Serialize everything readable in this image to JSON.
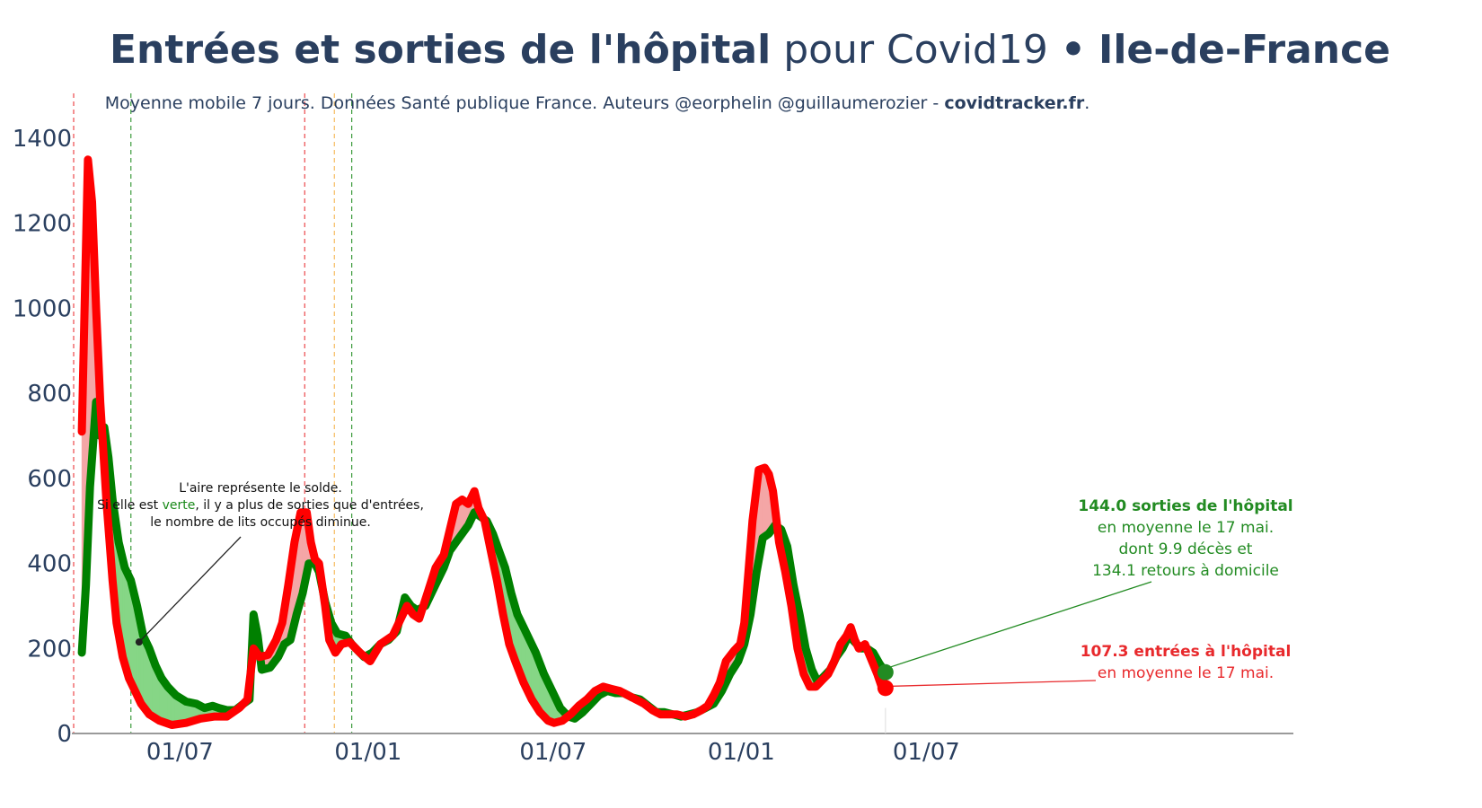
{
  "title": {
    "bold_part": "Entrées et sorties de l'hôpital",
    "regular_part": "pour Covid19",
    "separator": "•",
    "region": "Ile-de-France"
  },
  "subtitle": {
    "text": "Moyenne mobile 7 jours. Données Santé publique France. Auteurs @eorphelin @guillaumerozier - ",
    "site": "covidtracker.fr",
    "end": "."
  },
  "note": {
    "line1": "L'aire représente le solde.",
    "line2_before": "Si elle est ",
    "line2_colored": "verte",
    "line2_after": ", il y a plus de sorties que d'entrées,",
    "line3": "le nombre de lits occupés diminue."
  },
  "annotations": {
    "sorties_title": "144.0 sorties de l'hôpital",
    "sorties_line2": "en moyenne le 17 mai.",
    "sorties_line3": "dont 9.9 décès et",
    "sorties_line4": "134.1 retours à domicile",
    "entrees_title": "107.3 entrées à l'hôpital",
    "entrees_line2": "en moyenne le 17 mai."
  },
  "colors": {
    "entrees": "#ff0000",
    "sorties": "#008000",
    "area_positive": "#f4a6a6",
    "area_negative": "#86d686",
    "text": "#2a3f5f",
    "axis": "#9a9a9a"
  },
  "chart_data": {
    "type": "line",
    "x_unit": "days since 2020-03-19",
    "xlim": [
      0,
      1193
    ],
    "ylim": [
      0,
      1400
    ],
    "y_ticks": [
      0,
      200,
      400,
      600,
      800,
      1000,
      1200,
      1400
    ],
    "y_tick_labels": [
      "0",
      "200",
      "400",
      "600",
      "800",
      "1000",
      "1200",
      "1400"
    ],
    "x_ticks": [
      {
        "x": 104,
        "label": "01/07"
      },
      {
        "x": 288,
        "label": "01/01"
      },
      {
        "x": 469,
        "label": "01/07"
      },
      {
        "x": 653,
        "label": "01/01"
      },
      {
        "x": 834,
        "label": "01/07"
      }
    ],
    "vlines": [
      {
        "x": 0,
        "color": "#e8292c"
      },
      {
        "x": 56,
        "color": "#1a8a1a"
      },
      {
        "x": 226,
        "color": "#e8292c"
      },
      {
        "x": 255,
        "color": "#f5b042"
      },
      {
        "x": 272,
        "color": "#1a8a1a"
      }
    ],
    "series": [
      {
        "name": "entrées à l'hôpital",
        "color": "#ff0000",
        "points": [
          [
            8,
            710
          ],
          [
            14,
            1350
          ],
          [
            18,
            1250
          ],
          [
            22,
            1000
          ],
          [
            26,
            780
          ],
          [
            32,
            550
          ],
          [
            38,
            360
          ],
          [
            42,
            260
          ],
          [
            48,
            180
          ],
          [
            54,
            130
          ],
          [
            60,
            100
          ],
          [
            66,
            70
          ],
          [
            74,
            45
          ],
          [
            84,
            30
          ],
          [
            96,
            20
          ],
          [
            110,
            25
          ],
          [
            124,
            35
          ],
          [
            138,
            40
          ],
          [
            150,
            40
          ],
          [
            162,
            60
          ],
          [
            170,
            80
          ],
          [
            176,
            200
          ],
          [
            182,
            180
          ],
          [
            190,
            185
          ],
          [
            198,
            220
          ],
          [
            204,
            260
          ],
          [
            210,
            350
          ],
          [
            216,
            450
          ],
          [
            222,
            520
          ],
          [
            228,
            520
          ],
          [
            232,
            450
          ],
          [
            236,
            410
          ],
          [
            240,
            400
          ],
          [
            246,
            300
          ],
          [
            250,
            220
          ],
          [
            256,
            190
          ],
          [
            262,
            210
          ],
          [
            270,
            215
          ],
          [
            280,
            190
          ],
          [
            290,
            170
          ],
          [
            300,
            210
          ],
          [
            312,
            230
          ],
          [
            320,
            270
          ],
          [
            326,
            300
          ],
          [
            332,
            280
          ],
          [
            338,
            270
          ],
          [
            346,
            330
          ],
          [
            354,
            390
          ],
          [
            362,
            420
          ],
          [
            368,
            480
          ],
          [
            374,
            540
          ],
          [
            380,
            550
          ],
          [
            386,
            540
          ],
          [
            392,
            570
          ],
          [
            396,
            530
          ],
          [
            402,
            500
          ],
          [
            408,
            430
          ],
          [
            414,
            360
          ],
          [
            420,
            280
          ],
          [
            426,
            210
          ],
          [
            432,
            170
          ],
          [
            440,
            120
          ],
          [
            448,
            80
          ],
          [
            456,
            50
          ],
          [
            464,
            30
          ],
          [
            470,
            25
          ],
          [
            478,
            30
          ],
          [
            486,
            45
          ],
          [
            494,
            65
          ],
          [
            502,
            80
          ],
          [
            510,
            100
          ],
          [
            518,
            110
          ],
          [
            526,
            105
          ],
          [
            534,
            100
          ],
          [
            542,
            90
          ],
          [
            550,
            80
          ],
          [
            558,
            70
          ],
          [
            566,
            55
          ],
          [
            574,
            45
          ],
          [
            582,
            45
          ],
          [
            590,
            45
          ],
          [
            598,
            40
          ],
          [
            606,
            45
          ],
          [
            614,
            55
          ],
          [
            620,
            65
          ],
          [
            626,
            90
          ],
          [
            632,
            120
          ],
          [
            638,
            170
          ],
          [
            646,
            195
          ],
          [
            652,
            210
          ],
          [
            656,
            260
          ],
          [
            660,
            380
          ],
          [
            664,
            500
          ],
          [
            670,
            620
          ],
          [
            676,
            625
          ],
          [
            680,
            610
          ],
          [
            684,
            570
          ],
          [
            690,
            450
          ],
          [
            696,
            380
          ],
          [
            702,
            300
          ],
          [
            708,
            200
          ],
          [
            714,
            140
          ],
          [
            720,
            110
          ],
          [
            726,
            110
          ],
          [
            732,
            125
          ],
          [
            738,
            140
          ],
          [
            744,
            170
          ],
          [
            750,
            210
          ],
          [
            756,
            230
          ],
          [
            760,
            250
          ],
          [
            764,
            220
          ],
          [
            768,
            200
          ],
          [
            774,
            210
          ],
          [
            780,
            175
          ],
          [
            786,
            140
          ],
          [
            790,
            112
          ],
          [
            794,
            107
          ]
        ]
      },
      {
        "name": "sorties de l'hôpital",
        "color": "#008000",
        "points": [
          [
            8,
            190
          ],
          [
            12,
            350
          ],
          [
            16,
            580
          ],
          [
            22,
            780
          ],
          [
            26,
            700
          ],
          [
            30,
            720
          ],
          [
            34,
            650
          ],
          [
            38,
            550
          ],
          [
            44,
            450
          ],
          [
            50,
            390
          ],
          [
            56,
            360
          ],
          [
            62,
            300
          ],
          [
            68,
            230
          ],
          [
            74,
            200
          ],
          [
            80,
            160
          ],
          [
            86,
            130
          ],
          [
            92,
            110
          ],
          [
            100,
            90
          ],
          [
            110,
            75
          ],
          [
            120,
            70
          ],
          [
            128,
            60
          ],
          [
            136,
            65
          ],
          [
            142,
            60
          ],
          [
            150,
            55
          ],
          [
            158,
            55
          ],
          [
            166,
            70
          ],
          [
            172,
            80
          ],
          [
            176,
            280
          ],
          [
            180,
            230
          ],
          [
            184,
            150
          ],
          [
            192,
            155
          ],
          [
            200,
            180
          ],
          [
            206,
            210
          ],
          [
            212,
            220
          ],
          [
            218,
            280
          ],
          [
            224,
            330
          ],
          [
            230,
            400
          ],
          [
            236,
            400
          ],
          [
            240,
            380
          ],
          [
            246,
            310
          ],
          [
            252,
            260
          ],
          [
            258,
            235
          ],
          [
            266,
            230
          ],
          [
            272,
            210
          ],
          [
            278,
            195
          ],
          [
            284,
            180
          ],
          [
            292,
            190
          ],
          [
            300,
            210
          ],
          [
            308,
            220
          ],
          [
            316,
            240
          ],
          [
            324,
            320
          ],
          [
            330,
            300
          ],
          [
            336,
            290
          ],
          [
            344,
            300
          ],
          [
            350,
            330
          ],
          [
            356,
            360
          ],
          [
            362,
            390
          ],
          [
            368,
            430
          ],
          [
            374,
            450
          ],
          [
            380,
            470
          ],
          [
            386,
            490
          ],
          [
            392,
            520
          ],
          [
            398,
            510
          ],
          [
            404,
            500
          ],
          [
            410,
            470
          ],
          [
            416,
            430
          ],
          [
            422,
            390
          ],
          [
            428,
            330
          ],
          [
            434,
            280
          ],
          [
            440,
            250
          ],
          [
            446,
            220
          ],
          [
            452,
            190
          ],
          [
            460,
            140
          ],
          [
            468,
            100
          ],
          [
            476,
            60
          ],
          [
            484,
            40
          ],
          [
            490,
            35
          ],
          [
            498,
            50
          ],
          [
            506,
            70
          ],
          [
            514,
            90
          ],
          [
            522,
            100
          ],
          [
            530,
            95
          ],
          [
            538,
            95
          ],
          [
            546,
            85
          ],
          [
            554,
            80
          ],
          [
            562,
            65
          ],
          [
            570,
            50
          ],
          [
            578,
            50
          ],
          [
            586,
            45
          ],
          [
            594,
            40
          ],
          [
            602,
            45
          ],
          [
            610,
            50
          ],
          [
            618,
            60
          ],
          [
            626,
            70
          ],
          [
            634,
            100
          ],
          [
            642,
            140
          ],
          [
            650,
            170
          ],
          [
            656,
            210
          ],
          [
            662,
            280
          ],
          [
            668,
            380
          ],
          [
            674,
            460
          ],
          [
            680,
            470
          ],
          [
            686,
            490
          ],
          [
            692,
            480
          ],
          [
            698,
            440
          ],
          [
            704,
            350
          ],
          [
            710,
            280
          ],
          [
            716,
            200
          ],
          [
            722,
            150
          ],
          [
            728,
            120
          ],
          [
            734,
            135
          ],
          [
            740,
            150
          ],
          [
            746,
            180
          ],
          [
            752,
            200
          ],
          [
            758,
            230
          ],
          [
            764,
            215
          ],
          [
            770,
            200
          ],
          [
            776,
            200
          ],
          [
            782,
            190
          ],
          [
            788,
            165
          ],
          [
            794,
            144
          ]
        ]
      }
    ],
    "annotation_points": {
      "sorties": {
        "x": 794,
        "y": 144
      },
      "entrees": {
        "x": 794,
        "y": 107
      },
      "note_arrow": {
        "x": 64,
        "y": 215
      }
    }
  }
}
